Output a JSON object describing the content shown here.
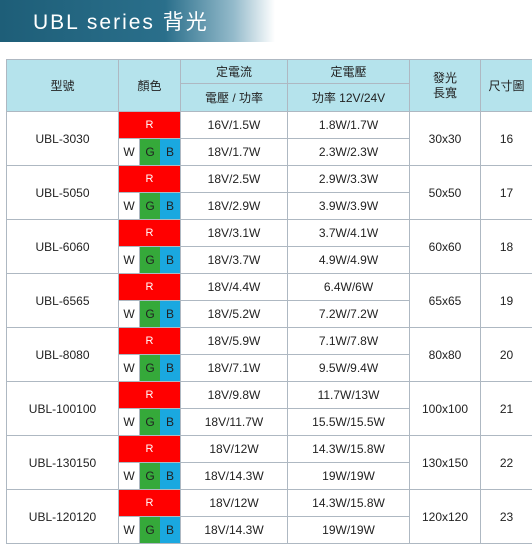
{
  "title": "UBL series 背光",
  "headers": {
    "model": "型號",
    "color": "顏色",
    "const_current": "定電流",
    "const_voltage": "定電壓",
    "led_len_wid": "發光\n長寬",
    "size_chart": "尺寸圖",
    "sub_current": "電壓 / 功率",
    "sub_voltage": "功率 12V/24V"
  },
  "colors": {
    "red": "#ff0000",
    "green": "#35a93a",
    "blue": "#1aa8e0",
    "header_bg": "#b5e3ec",
    "banner": "#1e5e78"
  },
  "rows": [
    {
      "model": "UBL-3030",
      "r": "R",
      "w": "W",
      "g": "G",
      "b": "B",
      "cc1": "16V/1.5W",
      "cc2": "18V/1.7W",
      "cv1": "1.8W/1.7W",
      "cv2": "2.3W/2.3W",
      "size": "30x30",
      "chart": "16"
    },
    {
      "model": "UBL-5050",
      "r": "R",
      "w": "W",
      "g": "G",
      "b": "B",
      "cc1": "18V/2.5W",
      "cc2": "18V/2.9W",
      "cv1": "2.9W/3.3W",
      "cv2": "3.9W/3.9W",
      "size": "50x50",
      "chart": "17"
    },
    {
      "model": "UBL-6060",
      "r": "R",
      "w": "W",
      "g": "G",
      "b": "B",
      "cc1": "18V/3.1W",
      "cc2": "18V/3.7W",
      "cv1": "3.7W/4.1W",
      "cv2": "4.9W/4.9W",
      "size": "60x60",
      "chart": "18"
    },
    {
      "model": "UBL-6565",
      "r": "R",
      "w": "W",
      "g": "G",
      "b": "B",
      "cc1": "18V/4.4W",
      "cc2": "18V/5.2W",
      "cv1": "6.4W/6W",
      "cv2": "7.2W/7.2W",
      "size": "65x65",
      "chart": "19"
    },
    {
      "model": "UBL-8080",
      "r": "R",
      "w": "W",
      "g": "G",
      "b": "B",
      "cc1": "18V/5.9W",
      "cc2": "18V/7.1W",
      "cv1": "7.1W/7.8W",
      "cv2": "9.5W/9.4W",
      "size": "80x80",
      "chart": "20"
    },
    {
      "model": "UBL-100100",
      "r": "R",
      "w": "W",
      "g": "G",
      "b": "B",
      "cc1": "18V/9.8W",
      "cc2": "18V/11.7W",
      "cv1": "11.7W/13W",
      "cv2": "15.5W/15.5W",
      "size": "100x100",
      "chart": "21"
    },
    {
      "model": "UBL-130150",
      "r": "R",
      "w": "W",
      "g": "G",
      "b": "B",
      "cc1": "18V/12W",
      "cc2": "18V/14.3W",
      "cv1": "14.3W/15.8W",
      "cv2": "19W/19W",
      "size": "130x150",
      "chart": "22"
    },
    {
      "model": "UBL-120120",
      "r": "R",
      "w": "W",
      "g": "G",
      "b": "B",
      "cc1": "18V/12W",
      "cc2": "18V/14.3W",
      "cv1": "14.3W/15.8W",
      "cv2": "19W/19W",
      "size": "120x120",
      "chart": "23"
    }
  ]
}
